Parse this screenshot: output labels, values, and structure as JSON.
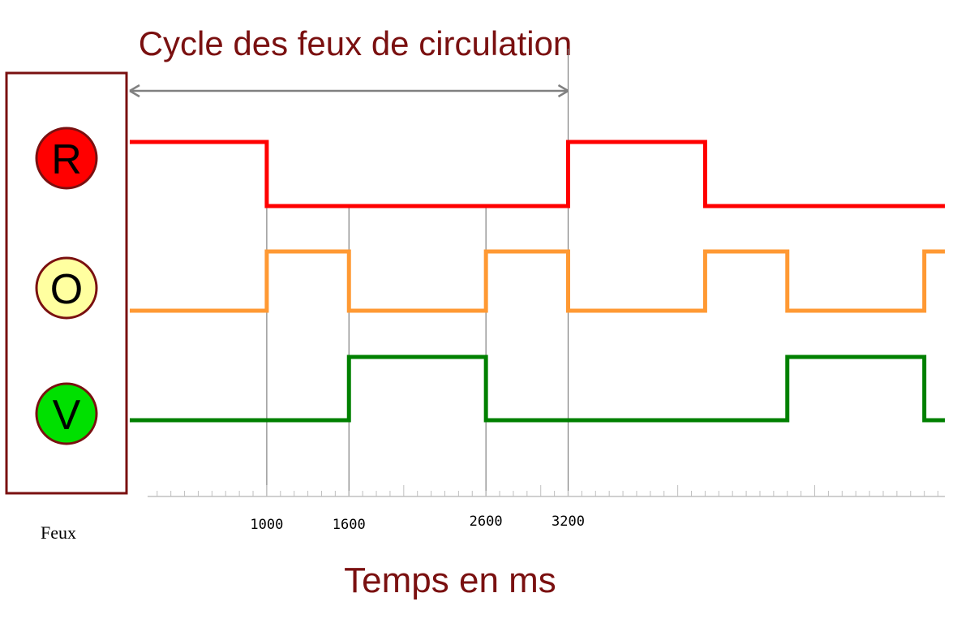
{
  "title": "Cycle des feux de circulation",
  "xlabel": "Temps en ms",
  "legend_box_label": "Feux",
  "colors": {
    "title": "#7a1010",
    "red_signal": "#ff0000",
    "orange_signal": "#ff9933",
    "green_signal": "#008000",
    "red_lamp": "#ff0000",
    "orange_lamp": "#ffffa0",
    "green_lamp": "#00e000",
    "lamp_border": "#7a1010",
    "box_border": "#7a1010",
    "guide_line": "#808080"
  },
  "chart_data": {
    "type": "timing-diagram",
    "title": "Cycle des feux de circulation",
    "xlabel": "Temps en ms",
    "x_ticks": [
      1000,
      1600,
      2600,
      3200
    ],
    "cycle": {
      "label": "Cycle des feux de circulation",
      "start": 0,
      "end": 3200
    },
    "xlim": [
      0,
      5950
    ],
    "series": [
      {
        "name": "R",
        "lamp": "red_lamp",
        "color": "red_signal",
        "steps": [
          [
            0,
            1
          ],
          [
            1000,
            0
          ],
          [
            3200,
            1
          ],
          [
            4200,
            0
          ],
          [
            5950,
            0
          ]
        ]
      },
      {
        "name": "O",
        "lamp": "orange_lamp",
        "color": "orange_signal",
        "steps": [
          [
            0,
            0
          ],
          [
            1000,
            1
          ],
          [
            1600,
            0
          ],
          [
            2600,
            1
          ],
          [
            3200,
            0
          ],
          [
            4200,
            1
          ],
          [
            4800,
            0
          ],
          [
            5800,
            1
          ],
          [
            5950,
            1
          ]
        ]
      },
      {
        "name": "V",
        "lamp": "green_lamp",
        "color": "green_signal",
        "steps": [
          [
            0,
            0
          ],
          [
            1600,
            1
          ],
          [
            2600,
            0
          ],
          [
            4800,
            1
          ],
          [
            5800,
            0
          ],
          [
            5950,
            0
          ]
        ]
      }
    ]
  }
}
